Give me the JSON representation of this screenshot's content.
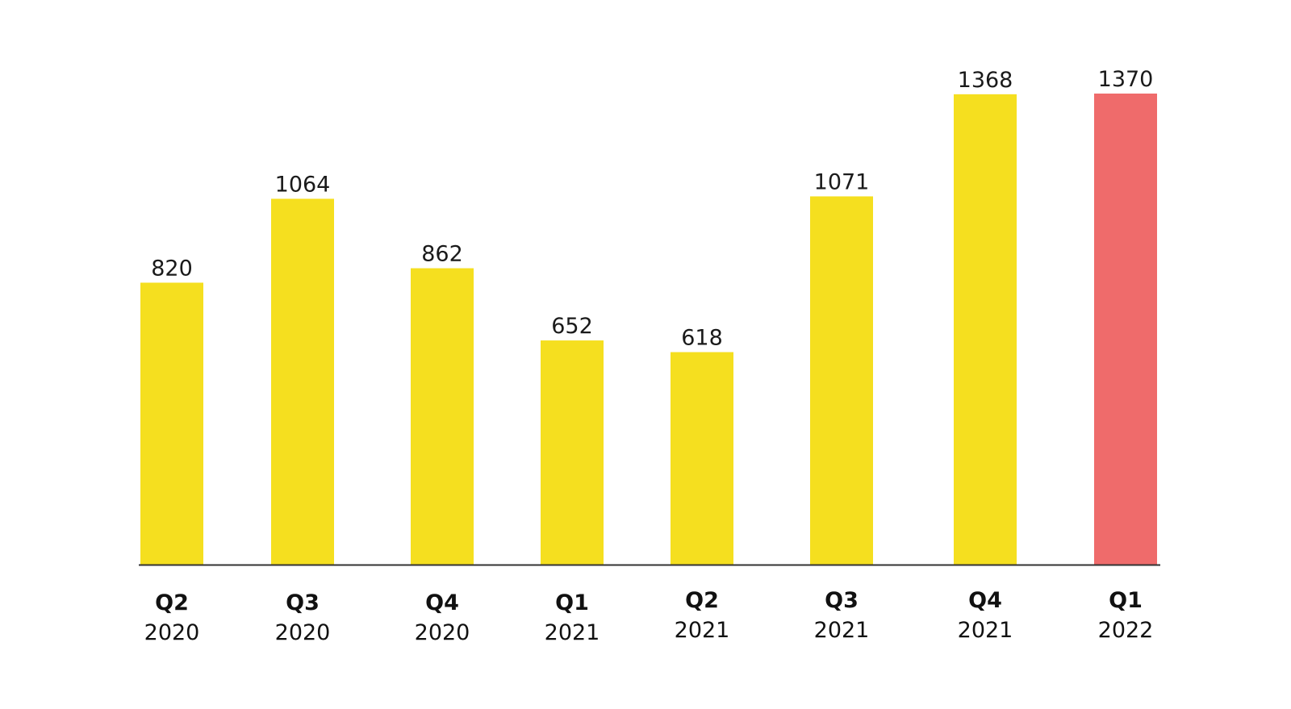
{
  "chart_data": {
    "type": "bar",
    "categories": [
      {
        "quarter": "Q2",
        "year": "2020"
      },
      {
        "quarter": "Q3",
        "year": "2020"
      },
      {
        "quarter": "Q4",
        "year": "2020"
      },
      {
        "quarter": "Q1",
        "year": "2021"
      },
      {
        "quarter": "Q2",
        "year": "2021"
      },
      {
        "quarter": "Q3",
        "year": "2021"
      },
      {
        "quarter": "Q4",
        "year": "2021"
      },
      {
        "quarter": "Q1",
        "year": "2022"
      }
    ],
    "values": [
      820,
      1064,
      862,
      652,
      618,
      1071,
      1368,
      1370
    ],
    "value_labels": [
      "820",
      "1064",
      "862",
      "652",
      "618",
      "1071",
      "1368",
      "1370"
    ],
    "bar_colors": [
      "#f5df1f",
      "#f5df1f",
      "#f5df1f",
      "#f5df1f",
      "#f5df1f",
      "#f5df1f",
      "#f5df1f",
      "#ef6b6b"
    ],
    "axis_color": "#333333",
    "title": "",
    "xlabel": "",
    "ylabel": "",
    "ylim": [
      0,
      1370
    ],
    "grid": false,
    "legend": "none"
  }
}
